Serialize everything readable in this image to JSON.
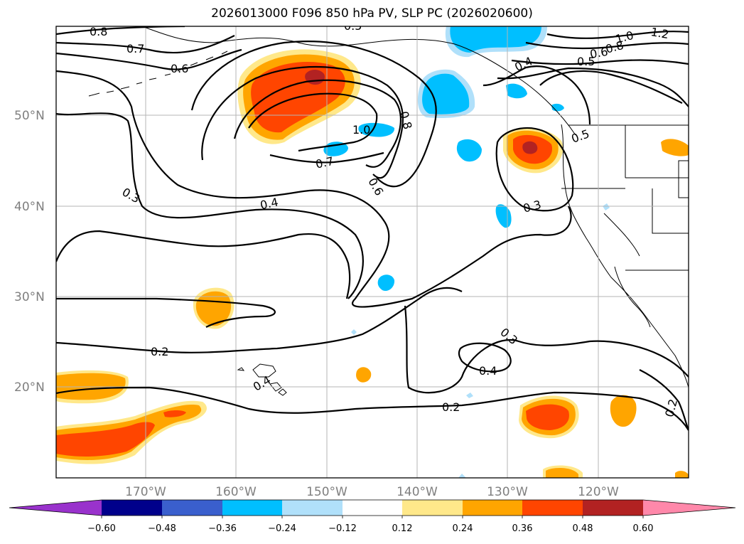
{
  "title": "2026013000 F096 850 hPa PV, SLP PC (2026020600)",
  "latitude_labels": [
    "50°N",
    "40°N",
    "30°N",
    "20°N"
  ],
  "longitude_labels": [
    "170°W",
    "160°W",
    "150°W",
    "140°W",
    "130°W",
    "120°W"
  ],
  "contour_labels": [
    "0.8",
    "0.7",
    "0.6",
    "0.5",
    "1.0",
    "0.8",
    "0.7",
    "0.6",
    "0.4",
    "0.3",
    "0.3",
    "0.2",
    "0.4",
    "0.3",
    "0.2",
    "0.4",
    "0.2",
    "0.5",
    "1.0",
    "1.2",
    "0.8",
    "0.6",
    "0.5",
    "0.4"
  ],
  "colorbar": {
    "ticks": [
      "−0.60",
      "−0.48",
      "−0.36",
      "−0.24",
      "−0.12",
      "0.12",
      "0.24",
      "0.36",
      "0.48",
      "0.60"
    ],
    "colors": [
      "#9932cc",
      "#00008b",
      "#3a5fcd",
      "#00bfff",
      "#b0e0fa",
      "#ffffff",
      "#ffe88a",
      "#ffa500",
      "#ff4500",
      "#b22222",
      "#ff88aa"
    ]
  },
  "fill_colors": {
    "pos_light": "#ffe88a",
    "pos_mid": "#ffa500",
    "pos_high": "#ff4500",
    "pos_max": "#b22222",
    "neg_mid": "#00bfff",
    "neg_light": "#b0e0fa"
  }
}
